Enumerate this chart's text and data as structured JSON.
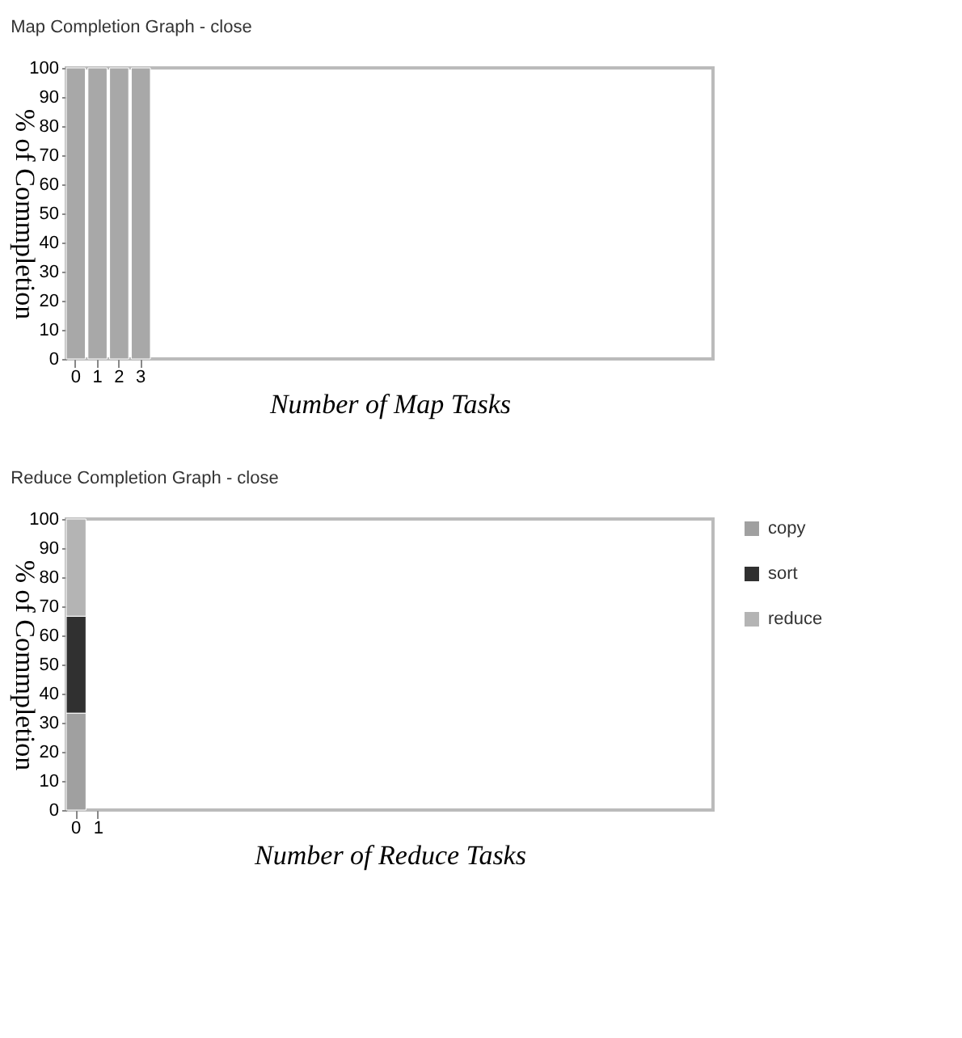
{
  "chart_data": [
    {
      "type": "bar",
      "title": "Map Completion Graph - close",
      "xlabel": "Number of Map Tasks",
      "ylabel": "% of Commpletion",
      "categories": [
        "0",
        "1",
        "2",
        "3"
      ],
      "series": [
        {
          "color": "#a8a8a8",
          "values": [
            100,
            100,
            100,
            100
          ]
        }
      ],
      "ylim": [
        0,
        100
      ],
      "yticks": [
        0,
        10,
        20,
        30,
        40,
        50,
        60,
        70,
        80,
        90,
        100
      ],
      "grid": false
    },
    {
      "type": "bar",
      "title": "Reduce Completion Graph - close",
      "xlabel": "Number of Reduce Tasks",
      "ylabel": "% of Commpletion",
      "categories": [
        "0",
        "1"
      ],
      "stacked": true,
      "series": [
        {
          "name": "copy",
          "color": "#a0a0a0",
          "values": [
            33.3,
            null
          ]
        },
        {
          "name": "sort",
          "color": "#303030",
          "values": [
            33.3,
            null
          ]
        },
        {
          "name": "reduce",
          "color": "#b4b4b4",
          "values": [
            33.4,
            null
          ]
        }
      ],
      "ylim": [
        0,
        100
      ],
      "yticks": [
        0,
        10,
        20,
        30,
        40,
        50,
        60,
        70,
        80,
        90,
        100
      ],
      "grid": false,
      "legend": "top right"
    }
  ]
}
